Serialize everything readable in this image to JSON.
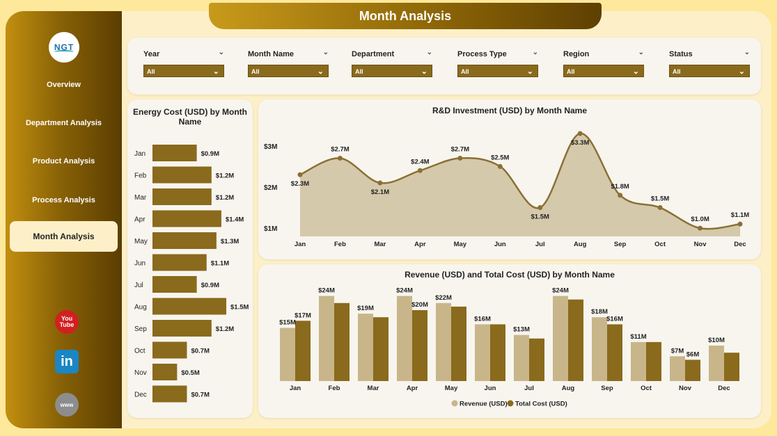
{
  "header": {
    "title": "Month Analysis"
  },
  "logo": {
    "text": "NGT"
  },
  "sidebar": {
    "items": [
      {
        "label": "Overview"
      },
      {
        "label": "Department Analysis"
      },
      {
        "label": "Product Analysis"
      },
      {
        "label": "Process Analysis"
      },
      {
        "label": "Month Analysis",
        "active": true
      }
    ],
    "social": [
      {
        "icon": "youtube-icon",
        "text": "You Tube"
      },
      {
        "icon": "linkedin-icon",
        "text": "in"
      },
      {
        "icon": "globe-icon",
        "text": "www"
      }
    ]
  },
  "filters": [
    {
      "label": "Year",
      "value": "All"
    },
    {
      "label": "Month Name",
      "value": "All"
    },
    {
      "label": "Department",
      "value": "All"
    },
    {
      "label": "Process Type",
      "value": "All"
    },
    {
      "label": "Region",
      "value": "All"
    },
    {
      "label": "Status",
      "value": "All"
    }
  ],
  "colors": {
    "accent": "#8a6a1c",
    "light": "#c8b68a",
    "area": "#cfc1a0",
    "line": "#8a7033"
  },
  "chart_data": [
    {
      "type": "bar",
      "orientation": "horizontal",
      "title": "Energy Cost (USD) by Month Name",
      "categories": [
        "Jan",
        "Feb",
        "Mar",
        "Apr",
        "May",
        "Jun",
        "Jul",
        "Aug",
        "Sep",
        "Oct",
        "Nov",
        "Dec"
      ],
      "values": [
        0.9,
        1.2,
        1.2,
        1.4,
        1.3,
        1.1,
        0.9,
        1.5,
        1.2,
        0.7,
        0.5,
        0.7
      ],
      "labels": [
        "$0.9M",
        "$1.2M",
        "$1.2M",
        "$1.4M",
        "$1.3M",
        "$1.1M",
        "$0.9M",
        "$1.5M",
        "$1.2M",
        "$0.7M",
        "$0.5M",
        "$0.7M"
      ]
    },
    {
      "type": "area",
      "title": "R&D Investment (USD) by Month Name",
      "categories": [
        "Jan",
        "Feb",
        "Mar",
        "Apr",
        "May",
        "Jun",
        "Jul",
        "Aug",
        "Sep",
        "Oct",
        "Nov",
        "Dec"
      ],
      "values": [
        2.3,
        2.7,
        2.1,
        2.4,
        2.7,
        2.5,
        1.5,
        3.3,
        1.8,
        1.5,
        1.0,
        1.1
      ],
      "labels": [
        "$2.3M",
        "$2.7M",
        "$2.1M",
        "$2.4M",
        "$2.7M",
        "$2.5M",
        "$1.5M",
        "$3.3M",
        "$1.8M",
        "$1.5M",
        "$1.0M",
        "$1.1M"
      ],
      "yticks": [
        "$1M",
        "$2M",
        "$3M"
      ],
      "ylim": [
        1,
        3
      ]
    },
    {
      "type": "bar",
      "title": "Revenue (USD) and Total Cost (USD) by Month Name",
      "categories": [
        "Jan",
        "Feb",
        "Mar",
        "Apr",
        "May",
        "Jun",
        "Jul",
        "Aug",
        "Sep",
        "Oct",
        "Nov",
        "Dec"
      ],
      "series": [
        {
          "name": "Revenue (USD)",
          "values": [
            15,
            24,
            19,
            24,
            22,
            16,
            13,
            24,
            18,
            11,
            7,
            10
          ]
        },
        {
          "name": "Total Cost (USD)",
          "values": [
            17,
            22,
            18,
            20,
            21,
            16,
            12,
            23,
            16,
            11,
            6,
            8
          ]
        }
      ],
      "labels": [
        {
          "text": "$15M",
          "series": 0,
          "index": 0
        },
        {
          "text": "$17M",
          "series": 1,
          "index": 0
        },
        {
          "text": "$24M",
          "series": 0,
          "index": 1
        },
        {
          "text": "$19M",
          "series": 0,
          "index": 2
        },
        {
          "text": "$24M",
          "series": 0,
          "index": 3
        },
        {
          "text": "$20M",
          "series": 1,
          "index": 3
        },
        {
          "text": "$22M",
          "series": 0,
          "index": 4
        },
        {
          "text": "$16M",
          "series": 0,
          "index": 5
        },
        {
          "text": "$13M",
          "series": 0,
          "index": 6
        },
        {
          "text": "$24M",
          "series": 0,
          "index": 7
        },
        {
          "text": "$18M",
          "series": 0,
          "index": 8
        },
        {
          "text": "$16M",
          "series": 1,
          "index": 8
        },
        {
          "text": "$11M",
          "series": 0,
          "index": 9
        },
        {
          "text": "$7M",
          "series": 0,
          "index": 10
        },
        {
          "text": "$6M",
          "series": 1,
          "index": 10
        },
        {
          "text": "$10M",
          "series": 0,
          "index": 11
        }
      ]
    }
  ]
}
